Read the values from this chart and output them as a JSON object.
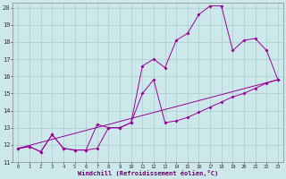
{
  "xlabel": "Windchill (Refroidissement éolien,°C)",
  "background_color": "#cce8ea",
  "grid_color": "#aacccc",
  "line_color": "#990099",
  "xlim": [
    -0.5,
    23.5
  ],
  "ylim": [
    11,
    20.3
  ],
  "yticks": [
    11,
    12,
    13,
    14,
    15,
    16,
    17,
    18,
    19,
    20
  ],
  "xticks": [
    0,
    1,
    2,
    3,
    4,
    5,
    6,
    7,
    8,
    9,
    10,
    11,
    12,
    13,
    14,
    15,
    16,
    17,
    18,
    19,
    20,
    21,
    22,
    23
  ],
  "line1_x": [
    0,
    1,
    2,
    3,
    4,
    5,
    6,
    7,
    8,
    9,
    10,
    11,
    12,
    13,
    14,
    15,
    16,
    17,
    18,
    19,
    20,
    21,
    22,
    23
  ],
  "line1_y": [
    11.8,
    11.9,
    11.6,
    12.6,
    11.8,
    11.7,
    11.7,
    11.8,
    13.0,
    13.0,
    13.3,
    16.6,
    17.0,
    16.5,
    18.1,
    18.5,
    19.6,
    20.1,
    20.1,
    17.5,
    18.1,
    18.2,
    17.5,
    15.8
  ],
  "line2_x": [
    0,
    1,
    2,
    3,
    4,
    5,
    6,
    7,
    8,
    9,
    10,
    11,
    12,
    13,
    14,
    15,
    16,
    17,
    18,
    19,
    20,
    21,
    22,
    23
  ],
  "line2_y": [
    11.8,
    11.9,
    11.6,
    12.6,
    11.8,
    11.7,
    11.7,
    13.2,
    13.0,
    13.0,
    13.3,
    15.0,
    15.8,
    13.3,
    13.4,
    13.6,
    13.9,
    14.2,
    14.5,
    14.8,
    15.0,
    15.3,
    15.6,
    15.8
  ],
  "line3_x": [
    0,
    23
  ],
  "line3_y": [
    11.8,
    15.8
  ]
}
